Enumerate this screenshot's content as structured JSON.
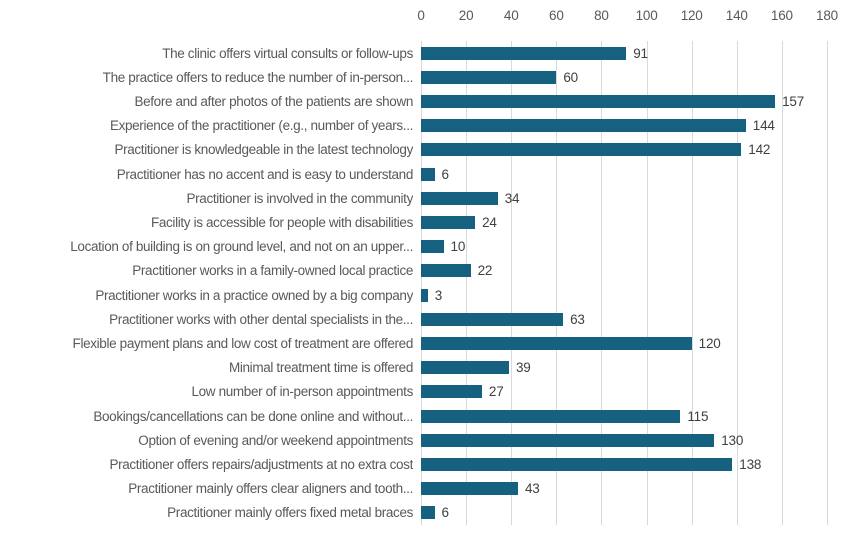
{
  "chart_data": {
    "type": "bar",
    "orientation": "horizontal",
    "title": "",
    "xlabel": "",
    "ylabel": "",
    "xlim": [
      0,
      180
    ],
    "xticks": [
      0,
      20,
      40,
      60,
      80,
      100,
      120,
      140,
      160,
      180
    ],
    "grid": "vertical-major",
    "legend": "none",
    "axis_position": "top",
    "categories": [
      "The clinic offers virtual consults or follow-ups",
      "The practice offers to reduce the number of in-person...",
      "Before and after photos of the patients are shown",
      "Experience of the practitioner (e.g., number of years...",
      "Practitioner is knowledgeable in the latest technology",
      "Practitioner has no accent and is easy to understand",
      "Practitioner is involved in the community",
      "Facility is accessible for people with disabilities",
      "Location of building is on ground level, and not on an upper...",
      "Practitioner works in a family-owned local practice",
      "Practitioner works in a practice owned by a big company",
      "Practitioner works with other dental specialists in the...",
      "Flexible payment plans and low cost of treatment are offered",
      "Minimal treatment time is offered",
      "Low number of in-person appointments",
      "Bookings/cancellations can be done online and without...",
      "Option of evening and/or weekend appointments",
      "Practitioner offers repairs/adjustments at no extra cost",
      "Practitioner mainly offers clear aligners and tooth...",
      "Practitioner mainly offers fixed metal braces"
    ],
    "values": [
      91,
      60,
      157,
      144,
      142,
      6,
      34,
      24,
      10,
      22,
      3,
      63,
      120,
      39,
      27,
      115,
      130,
      138,
      43,
      6
    ],
    "colors": {
      "bar": "#16617f",
      "gridline": "#d9d9d9",
      "axis_tick_label": "#595959",
      "category_label": "#595959",
      "value_label": "#404040",
      "background": "#ffffff"
    }
  }
}
